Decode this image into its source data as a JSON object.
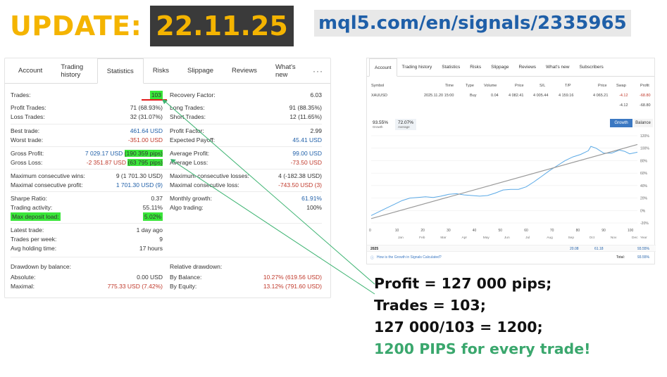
{
  "header": {
    "update_label": "UPDATE:",
    "update_date": "22.11.25",
    "signal_url": "mql5.com/en/signals/2335965"
  },
  "left_tabs": [
    "Account",
    "Trading history",
    "Statistics",
    "Risks",
    "Slippage",
    "Reviews",
    "What's new",
    "···"
  ],
  "stats_left": [
    {
      "label": "Trades:",
      "value": "103"
    },
    {
      "label": "Profit Trades:",
      "value": "71 (68.93%)"
    },
    {
      "label": "Loss Trades:",
      "value": "32 (31.07%)"
    },
    {
      "label": "Best trade:",
      "value": "461.64 USD"
    },
    {
      "label": "Worst trade:",
      "value": "-351.00 USD"
    },
    {
      "label": "Gross Profit:",
      "value_a": "7 029.17 USD",
      "value_b": "(190 359 pips)"
    },
    {
      "label": "Gross Loss:",
      "value_a": "-2 351.87 USD",
      "value_b": "(63 795 pips)"
    },
    {
      "label": "Maximum consecutive wins:",
      "value": "9 (1 701.30 USD)"
    },
    {
      "label": "Maximal consecutive profit:",
      "value": "1 701.30 USD (9)"
    },
    {
      "label": "Sharpe Ratio:",
      "value": "0.37"
    },
    {
      "label": "Trading activity:",
      "value": "55.11%"
    },
    {
      "label": "Max deposit load:",
      "value": "5.02%"
    },
    {
      "label": "Latest trade:",
      "value": "1 day ago"
    },
    {
      "label": "Trades per week:",
      "value": "9"
    },
    {
      "label": "Avg holding time:",
      "value": "17 hours"
    }
  ],
  "stats_right": [
    {
      "label": "Recovery Factor:",
      "value": "6.03"
    },
    {
      "label": "Long Trades:",
      "value": "91 (88.35%)"
    },
    {
      "label": "Short Trades:",
      "value": "12 (11.65%)"
    },
    {
      "label": "Profit Factor:",
      "value": "2.99"
    },
    {
      "label": "Expected Payoff:",
      "value": "45.41 USD"
    },
    {
      "label": "Average Profit:",
      "value": "99.00 USD"
    },
    {
      "label": "Average Loss:",
      "value": "-73.50 USD"
    },
    {
      "label": "Maximum consecutive losses:",
      "value": "4 (-182.38 USD)"
    },
    {
      "label": "Maximal consecutive loss:",
      "value": "-743.50 USD (3)"
    },
    {
      "label": "Monthly growth:",
      "value": "61.91%"
    },
    {
      "label": "Algo trading:",
      "value": "100%"
    }
  ],
  "drawdown_balance": {
    "title": "Drawdown by balance:",
    "absolute_label": "Absolute:",
    "absolute_value": "0.00 USD",
    "maximal_label": "Maximal:",
    "maximal_value": "775.33 USD (7.42%)"
  },
  "relative_drawdown": {
    "title": "Relative drawdown:",
    "balance_label": "By Balance:",
    "balance_value": "10.27% (619.56 USD)",
    "equity_label": "By Equity:",
    "equity_value": "13.12% (791.60 USD)"
  },
  "right_tabs": [
    "Account",
    "Trading history",
    "Statistics",
    "Risks",
    "Slippage",
    "Reviews",
    "What's new",
    "Subscribers"
  ],
  "positions_header": [
    "Symbol",
    "Time",
    "Type",
    "Volume",
    "Price",
    "S/L",
    "T/P",
    "Price",
    "Swap",
    "Profit"
  ],
  "positions": [
    [
      "XAUUSD",
      "2025.11.20 15:00",
      "Buy",
      "0.04",
      "4 082.41",
      "4 005.44",
      "4 159.16",
      "4 065.21",
      "-4.12",
      "-68.80"
    ]
  ],
  "positions_total": {
    "swap": "-4.12",
    "profit": "-68.80"
  },
  "growth_chip": {
    "value": "93.55%",
    "label": "Growth"
  },
  "average_chip": {
    "value": "72.07%",
    "label": "Average"
  },
  "chart_buttons": {
    "growth": "Growth",
    "balance": "Balance"
  },
  "chart_data": {
    "type": "line",
    "x_ticks": [
      "0",
      "10",
      "20",
      "30",
      "40",
      "50",
      "60",
      "70",
      "80",
      "90",
      "100"
    ],
    "month_labels": [
      "Jan",
      "Feb",
      "Mar",
      "Apr",
      "May",
      "Jun",
      "Jul",
      "Aug",
      "Sep",
      "Oct",
      "Nov",
      "Dec"
    ],
    "y_ticks": [
      "120%",
      "100%",
      "80%",
      "60%",
      "40%",
      "20%",
      "0%",
      "-20%"
    ],
    "ylim": [
      -20,
      120
    ],
    "xlim": [
      0,
      103
    ],
    "series": [
      {
        "name": "Growth",
        "color": "#5aa9e6",
        "x": [
          0,
          3,
          6,
          9,
          12,
          15,
          18,
          21,
          24,
          27,
          30,
          33,
          36,
          39,
          42,
          45,
          48,
          51,
          54,
          57,
          60,
          63,
          66,
          69,
          72,
          75,
          78,
          81,
          84,
          85,
          87,
          90,
          93,
          96,
          98,
          100,
          103
        ],
        "y": [
          -8,
          -2,
          4,
          10,
          16,
          20,
          21,
          22,
          21,
          23,
          26,
          27,
          25,
          24,
          23,
          24,
          28,
          33,
          34,
          34,
          38,
          46,
          55,
          64,
          72,
          80,
          86,
          90,
          96,
          103,
          100,
          92,
          92,
          97,
          95,
          91,
          93.55
        ]
      },
      {
        "name": "Average",
        "color": "#999999",
        "x": [
          0,
          103
        ],
        "y": [
          -13,
          106
        ]
      }
    ]
  },
  "year_row": {
    "year": "2025",
    "v1": "20.08",
    "v2": "61.18",
    "total": "93.55%"
  },
  "footer": {
    "link": "How is the Growth in Signals Calculated?",
    "total_label": "Total:",
    "total_value": "93.55%"
  },
  "calc": {
    "line1": "Profit = 127 000 pips;",
    "line2": "Trades = 103;",
    "line3": "127 000/103 = 1200;",
    "line4": "1200 PIPS for every trade!"
  }
}
